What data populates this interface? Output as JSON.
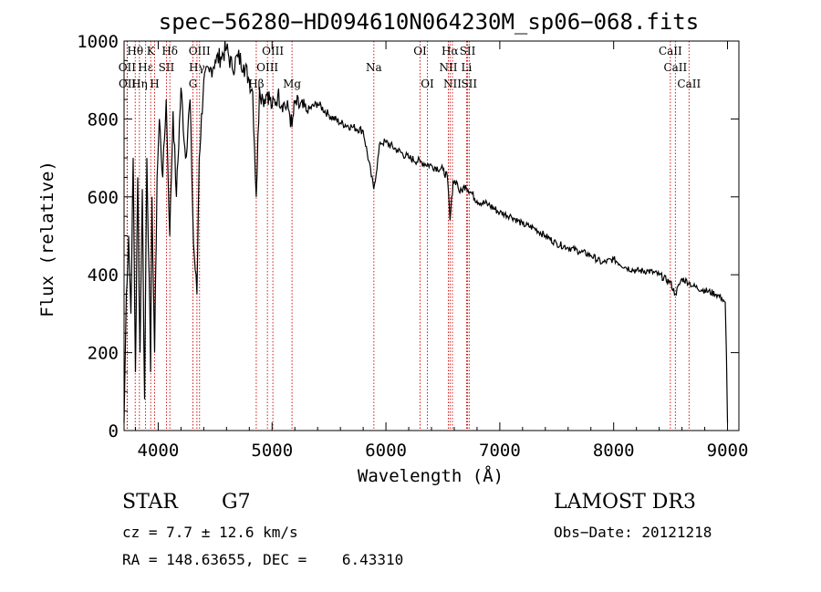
{
  "chart_data": {
    "type": "line",
    "title": "spec−56280−HD094610N064230M_sp06−068.fits",
    "xlabel": "Wavelength (Å)",
    "ylabel": "Flux (relative)",
    "xlim": [
      3700,
      9100
    ],
    "ylim": [
      0,
      1000
    ],
    "x_ticks": [
      4000,
      5000,
      6000,
      7000,
      8000,
      9000
    ],
    "y_ticks": [
      0,
      200,
      400,
      600,
      800,
      1000
    ],
    "series": [
      {
        "name": "spectrum",
        "x": [
          3700,
          3720,
          3740,
          3760,
          3780,
          3800,
          3820,
          3840,
          3860,
          3880,
          3900,
          3920,
          3933,
          3945,
          3968,
          3990,
          4010,
          4040,
          4070,
          4101,
          4130,
          4160,
          4200,
          4240,
          4280,
          4310,
          4340,
          4360,
          4400,
          4450,
          4500,
          4550,
          4600,
          4650,
          4700,
          4750,
          4800,
          4830,
          4861,
          4890,
          4920,
          4960,
          5000,
          5050,
          5100,
          5150,
          5175,
          5200,
          5300,
          5400,
          5500,
          5600,
          5700,
          5800,
          5893,
          5950,
          6000,
          6100,
          6200,
          6300,
          6400,
          6500,
          6540,
          6563,
          6590,
          6620,
          6650,
          6700,
          6800,
          6900,
          7000,
          7100,
          7200,
          7300,
          7400,
          7500,
          7600,
          7700,
          7800,
          7900,
          8000,
          8100,
          8200,
          8300,
          8400,
          8498,
          8542,
          8600,
          8662,
          8700,
          8800,
          8900,
          8950,
          8980,
          8990,
          9000
        ],
        "y": [
          20,
          350,
          500,
          300,
          700,
          150,
          650,
          200,
          620,
          80,
          700,
          400,
          150,
          600,
          200,
          650,
          800,
          650,
          850,
          500,
          820,
          600,
          880,
          700,
          850,
          480,
          350,
          700,
          900,
          920,
          950,
          960,
          980,
          930,
          960,
          940,
          900,
          870,
          600,
          880,
          850,
          870,
          830,
          860,
          840,
          820,
          780,
          840,
          820,
          840,
          810,
          790,
          780,
          770,
          620,
          740,
          740,
          720,
          700,
          690,
          680,
          670,
          650,
          540,
          640,
          640,
          610,
          630,
          590,
          580,
          560,
          550,
          530,
          520,
          500,
          480,
          470,
          460,
          450,
          430,
          440,
          420,
          410,
          410,
          400,
          380,
          350,
          390,
          380,
          370,
          360,
          350,
          340,
          330,
          200,
          20
        ]
      }
    ],
    "line_markers": [
      {
        "label": "Hθ",
        "x": 3798,
        "row": 0
      },
      {
        "label": "OII",
        "x": 3727,
        "row": 1
      },
      {
        "label": "OII",
        "x": 3729,
        "row": 2
      },
      {
        "label": "Hη",
        "x": 3835,
        "row": 2
      },
      {
        "label": "K",
        "x": 3934,
        "row": 0
      },
      {
        "label": "Hε",
        "x": 3889,
        "row": 1
      },
      {
        "label": "H",
        "x": 3968,
        "row": 2
      },
      {
        "label": "SII",
        "x": 4072,
        "row": 1
      },
      {
        "label": "Hδ",
        "x": 4102,
        "row": 0
      },
      {
        "label": "OIII",
        "x": 4363,
        "row": 0
      },
      {
        "label": "Hγ",
        "x": 4340,
        "row": 1
      },
      {
        "label": "G",
        "x": 4305,
        "row": 2
      },
      {
        "label": "Hβ",
        "x": 4861,
        "row": 2
      },
      {
        "label": "OIII",
        "x": 4959,
        "row": 1
      },
      {
        "label": "OIII",
        "x": 5007,
        "row": 0
      },
      {
        "label": "Mg",
        "x": 5175,
        "row": 2
      },
      {
        "label": "Na",
        "x": 5894,
        "row": 1
      },
      {
        "label": "OI",
        "x": 6300,
        "row": 0
      },
      {
        "label": "OI",
        "x": 6364,
        "row": 2
      },
      {
        "label": "Hα",
        "x": 6563,
        "row": 0
      },
      {
        "label": "NII",
        "x": 6548,
        "row": 1
      },
      {
        "label": "NII",
        "x": 6584,
        "row": 2
      },
      {
        "label": "SII",
        "x": 6717,
        "row": 0
      },
      {
        "label": "Li",
        "x": 6708,
        "row": 1
      },
      {
        "label": "SII",
        "x": 6731,
        "row": 2
      },
      {
        "label": "CaII",
        "x": 8498,
        "row": 0
      },
      {
        "label": "CaII",
        "x": 8542,
        "row": 1
      },
      {
        "label": "CaII",
        "x": 8662,
        "row": 2
      }
    ]
  },
  "info": {
    "class": "STAR",
    "subclass": "G7",
    "survey": "LAMOST DR3",
    "cz": "cz = 7.7 ± 12.6 km/s",
    "obs_date": "Obs−Date: 20121218",
    "coords": "RA = 148.63655, DEC =    6.43310"
  },
  "colors": {
    "spectrum": "#000000",
    "markers": "#cc0000",
    "axes": "#000000"
  }
}
